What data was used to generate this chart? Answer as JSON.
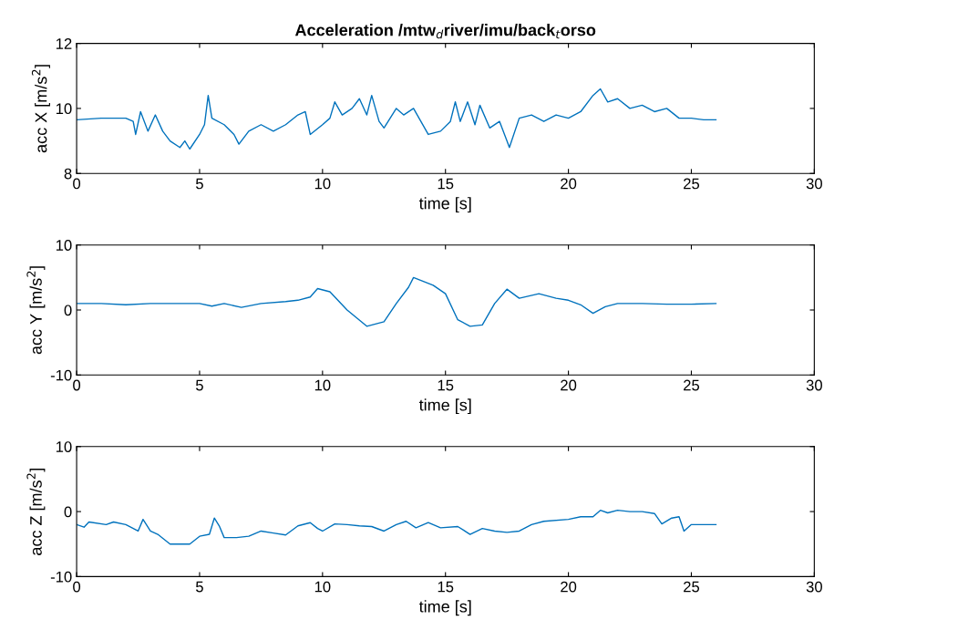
{
  "chart_data": [
    {
      "type": "line",
      "title": "Acceleration /mtw$_{d}$river/imu/back$_{t}$orso",
      "xlabel": "time [s]",
      "ylabel": "acc X [m/s$^{2}$]",
      "xlim": [
        0,
        30
      ],
      "xticks": [
        0,
        5,
        10,
        15,
        20,
        25,
        30
      ],
      "ylim": [
        8,
        12
      ],
      "yticks": [
        8,
        10,
        12
      ],
      "series": [
        {
          "color": "#0072bd",
          "x": [
            0,
            1,
            2,
            2.3,
            2.4,
            2.6,
            2.9,
            3.2,
            3.5,
            3.8,
            4.2,
            4.4,
            4.6,
            5.0,
            5.2,
            5.35,
            5.5,
            6.0,
            6.4,
            6.6,
            7.0,
            7.5,
            8.0,
            8.5,
            9.0,
            9.3,
            9.5,
            10.0,
            10.3,
            10.5,
            10.8,
            11.2,
            11.5,
            11.8,
            12.0,
            12.3,
            12.5,
            13.0,
            13.3,
            13.7,
            14.0,
            14.3,
            14.8,
            15.2,
            15.4,
            15.6,
            15.9,
            16.2,
            16.4,
            16.8,
            17.2,
            17.5,
            17.6,
            18.0,
            18.5,
            19.0,
            19.5,
            20.0,
            20.5,
            21.0,
            21.3,
            21.6,
            22.0,
            22.5,
            23.0,
            23.5,
            24.0,
            24.5,
            25.0,
            25.5,
            26.0
          ],
          "values": [
            9.65,
            9.7,
            9.7,
            9.6,
            9.2,
            9.9,
            9.3,
            9.8,
            9.3,
            9.0,
            8.8,
            9.0,
            8.75,
            9.2,
            9.5,
            10.4,
            9.7,
            9.5,
            9.2,
            8.9,
            9.3,
            9.5,
            9.3,
            9.5,
            9.8,
            9.9,
            9.2,
            9.5,
            9.7,
            10.2,
            9.8,
            10.0,
            10.3,
            9.8,
            10.4,
            9.6,
            9.4,
            10.0,
            9.8,
            10.0,
            9.6,
            9.2,
            9.3,
            9.6,
            10.2,
            9.6,
            10.2,
            9.5,
            10.1,
            9.4,
            9.6,
            9.0,
            8.8,
            9.7,
            9.8,
            9.6,
            9.8,
            9.7,
            9.9,
            10.4,
            10.6,
            10.2,
            10.3,
            10.0,
            10.1,
            9.9,
            10.0,
            9.7,
            9.7,
            9.65,
            9.65
          ]
        }
      ]
    },
    {
      "type": "line",
      "xlabel": "time [s]",
      "ylabel": "acc Y [m/s$^{2}$]",
      "xlim": [
        0,
        30
      ],
      "xticks": [
        0,
        5,
        10,
        15,
        20,
        25,
        30
      ],
      "ylim": [
        -10,
        10
      ],
      "yticks": [
        -10,
        0,
        10
      ],
      "series": [
        {
          "color": "#0072bd",
          "x": [
            0,
            1,
            2,
            3,
            4,
            5,
            5.5,
            6,
            6.7,
            7.5,
            8.5,
            9,
            9.5,
            9.8,
            10.3,
            11,
            11.8,
            12.5,
            13,
            13.5,
            13.7,
            14.5,
            15,
            15.5,
            16,
            16.5,
            17,
            17.5,
            18,
            18.8,
            19.5,
            20,
            20.5,
            21,
            21.5,
            22,
            23,
            24,
            25,
            26
          ],
          "values": [
            1,
            1,
            0.8,
            1,
            1,
            1,
            0.6,
            1,
            0.4,
            1,
            1.3,
            1.5,
            2,
            3.3,
            2.8,
            0,
            -2.5,
            -1.8,
            1,
            3.5,
            5,
            3.8,
            2.5,
            -1.5,
            -2.5,
            -2.3,
            1,
            3.2,
            1.8,
            2.5,
            1.8,
            1.5,
            0.8,
            -0.5,
            0.5,
            1.0,
            1.0,
            0.9,
            0.9,
            1.0
          ]
        }
      ]
    },
    {
      "type": "line",
      "xlabel": "time [s]",
      "ylabel": "acc Z [m/s$^{2}$]",
      "xlim": [
        0,
        30
      ],
      "xticks": [
        0,
        5,
        10,
        15,
        20,
        25,
        30
      ],
      "ylim": [
        -10,
        10
      ],
      "yticks": [
        -10,
        0,
        10
      ],
      "series": [
        {
          "color": "#0072bd",
          "x": [
            0,
            0.3,
            0.5,
            1.2,
            1.5,
            2.0,
            2.5,
            2.7,
            3.0,
            3.3,
            3.8,
            4.2,
            4.6,
            5.0,
            5.4,
            5.6,
            5.8,
            6.0,
            6.5,
            7.0,
            7.5,
            8.0,
            8.5,
            9.0,
            9.5,
            9.8,
            10.0,
            10.5,
            11.0,
            11.5,
            12.0,
            12.5,
            13.0,
            13.4,
            13.8,
            14.3,
            14.8,
            15.5,
            16.0,
            16.5,
            17.0,
            17.5,
            18.0,
            18.5,
            19.0,
            20.0,
            20.5,
            21.0,
            21.3,
            21.6,
            22.0,
            22.5,
            23.0,
            23.5,
            23.8,
            24.2,
            24.5,
            24.7,
            25.0,
            26.0
          ],
          "values": [
            -2,
            -2.4,
            -1.6,
            -2.0,
            -1.6,
            -2.0,
            -3.0,
            -1.2,
            -3.0,
            -3.5,
            -5.0,
            -5.0,
            -5.0,
            -3.8,
            -3.5,
            -1.0,
            -2.2,
            -4.0,
            -4.0,
            -3.8,
            -3.0,
            -3.3,
            -3.6,
            -2.2,
            -1.7,
            -2.6,
            -3.0,
            -1.9,
            -2.0,
            -2.2,
            -2.3,
            -3.0,
            -2.0,
            -1.5,
            -2.5,
            -1.7,
            -2.5,
            -2.3,
            -3.5,
            -2.6,
            -3.0,
            -3.2,
            -3.0,
            -2.0,
            -1.5,
            -1.2,
            -0.8,
            -0.8,
            0.2,
            -0.2,
            0.2,
            0.0,
            0.0,
            -0.3,
            -1.9,
            -1.0,
            -0.8,
            -3.0,
            -2.0,
            -2.0
          ]
        }
      ]
    }
  ]
}
